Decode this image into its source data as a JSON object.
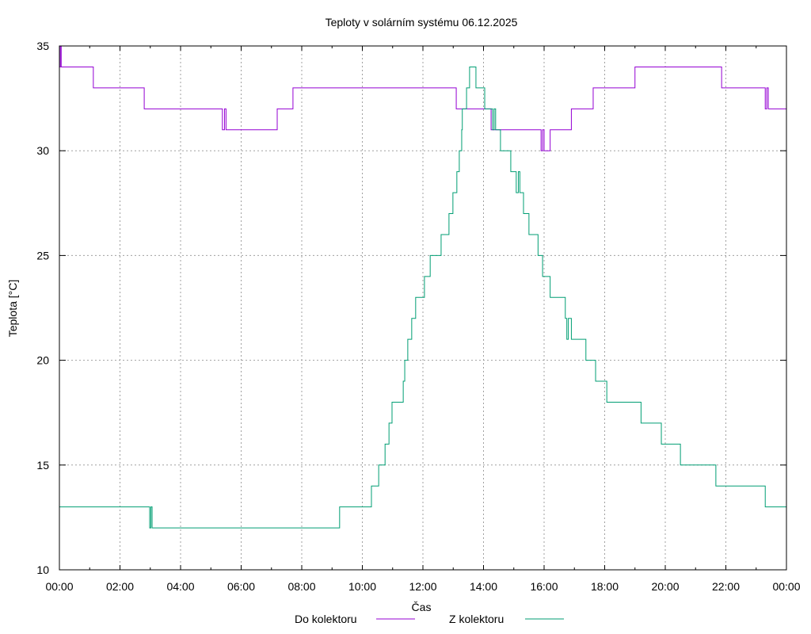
{
  "chart_data": {
    "type": "line",
    "title": "Teploty v solárním systému 06.12.2025",
    "xlabel": "Čas",
    "ylabel": "Teplota [°C]",
    "xlim": [
      0,
      24
    ],
    "ylim": [
      10,
      35
    ],
    "grid": true,
    "legend_position": "bottom",
    "x_ticks": [
      "00:00",
      "02:00",
      "04:00",
      "06:00",
      "08:00",
      "10:00",
      "12:00",
      "14:00",
      "16:00",
      "18:00",
      "20:00",
      "22:00",
      "00:00"
    ],
    "y_ticks": [
      "10",
      "15",
      "20",
      "25",
      "30",
      "35"
    ],
    "series": [
      {
        "name": "Do kolektoru",
        "color": "#9400d3",
        "step_hours": [
          0,
          0.03,
          0.06,
          1.12,
          2.8,
          5.38,
          5.45,
          5.5,
          5.55,
          7.19,
          7.71,
          13.1,
          13.15,
          14.25,
          14.3,
          15.9,
          15.95,
          16.0,
          16.05,
          16.2,
          16.9,
          17.62,
          19.0,
          21.86,
          23.3,
          23.35,
          23.4,
          24
        ],
        "values": [
          34,
          35,
          34,
          33,
          32,
          31,
          32,
          31,
          31,
          32,
          33,
          32,
          32,
          31,
          31,
          30,
          31,
          30,
          30,
          31,
          32,
          33,
          34,
          33,
          32,
          33,
          32,
          32
        ]
      },
      {
        "name": "Z kolektoru",
        "color": "#009e73",
        "step_hours": [
          0,
          2.98,
          3.02,
          3.06,
          9.25,
          10.3,
          10.54,
          10.75,
          10.88,
          10.98,
          11.35,
          11.4,
          11.5,
          11.63,
          11.76,
          12.05,
          12.24,
          12.6,
          12.86,
          12.99,
          13.12,
          13.2,
          13.28,
          13.3,
          13.44,
          13.54,
          13.75,
          14.04,
          14.3,
          14.35,
          14.4,
          14.56,
          14.9,
          15.08,
          15.15,
          15.2,
          15.32,
          15.5,
          15.8,
          15.95,
          16.2,
          16.7,
          16.75,
          16.8,
          16.9,
          17.38,
          17.7,
          18.07,
          19.2,
          19.87,
          20.5,
          21.67,
          23.3,
          24
        ],
        "values": [
          13,
          12,
          13,
          12,
          13,
          14,
          15,
          16,
          17,
          18,
          19,
          20,
          21,
          22,
          23,
          24,
          25,
          26,
          27,
          28,
          29,
          30,
          31,
          32,
          33,
          34,
          33,
          32,
          31,
          32,
          31,
          30,
          29,
          28,
          29,
          28,
          27,
          26,
          25,
          24,
          23,
          22,
          21,
          22,
          21,
          20,
          19,
          18,
          17,
          16,
          15,
          14,
          13,
          13
        ]
      }
    ]
  }
}
